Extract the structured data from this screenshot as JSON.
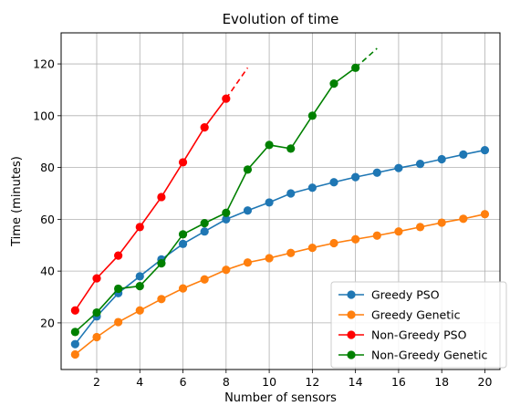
{
  "chart_data": {
    "type": "line",
    "title": "Evolution of time",
    "xlabel": "Number of sensors",
    "ylabel": "Time (minutes)",
    "xlim": [
      0.35,
      20.7
    ],
    "ylim": [
      2,
      132
    ],
    "xticks": [
      2,
      4,
      6,
      8,
      10,
      12,
      14,
      16,
      18,
      20
    ],
    "yticks": [
      20,
      40,
      60,
      80,
      100,
      120
    ],
    "grid": true,
    "legend_position": "lower-right",
    "series": [
      {
        "name": "Greedy PSO",
        "color": "#1f77b4",
        "x": [
          1,
          2,
          3,
          4,
          5,
          6,
          7,
          8,
          9,
          10,
          11,
          12,
          13,
          14,
          15,
          16,
          17,
          18,
          19,
          20
        ],
        "y": [
          11.8,
          22.5,
          31.5,
          38,
          44.5,
          50.5,
          55.3,
          60,
          63.4,
          66.5,
          70,
          72.2,
          74.3,
          76.3,
          78,
          79.8,
          81.4,
          83.2,
          85,
          86.7
        ]
      },
      {
        "name": "Greedy Genetic",
        "color": "#ff7f0e",
        "x": [
          1,
          2,
          3,
          4,
          5,
          6,
          7,
          8,
          9,
          10,
          11,
          12,
          13,
          14,
          15,
          16,
          17,
          18,
          19,
          20
        ],
        "y": [
          7.8,
          14.5,
          20.3,
          24.8,
          29.2,
          33.3,
          36.8,
          40.5,
          43.3,
          45,
          47,
          49,
          50.8,
          52.3,
          53.7,
          55.3,
          57,
          58.7,
          60.2,
          62
        ]
      },
      {
        "name": "Non-Greedy PSO",
        "color": "#ff0000",
        "x": [
          1,
          2,
          3,
          4,
          5,
          6,
          7,
          8
        ],
        "y": [
          24.8,
          37.2,
          46,
          57,
          68.6,
          82,
          95.5,
          106.6
        ],
        "extrapolation": {
          "x": [
            8,
            9
          ],
          "y": [
            106.6,
            118.5
          ]
        }
      },
      {
        "name": "Non-Greedy Genetic",
        "color": "#008000",
        "x": [
          1,
          2,
          3,
          4,
          5,
          6,
          7,
          8,
          9,
          10,
          11,
          12,
          13,
          14
        ],
        "y": [
          16.5,
          24,
          33.2,
          34.2,
          43,
          54.2,
          58.5,
          62.5,
          79.2,
          88.7,
          87.3,
          100,
          112.4,
          118.5
        ],
        "extrapolation": {
          "x": [
            14,
            15
          ],
          "y": [
            118.5,
            126
          ]
        }
      }
    ]
  }
}
